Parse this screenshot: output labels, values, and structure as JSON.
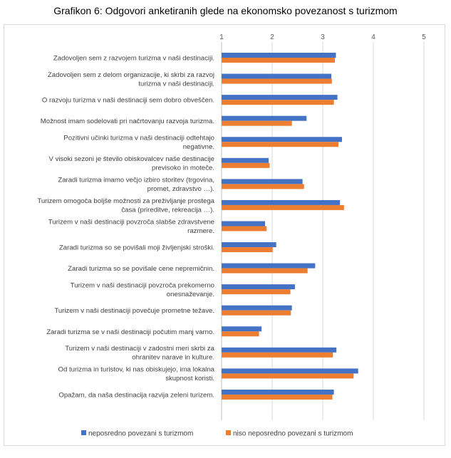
{
  "page": {
    "title": "Grafikon 6: Odgovori anketiranih glede na ekonomsko povezanost s turizmom"
  },
  "colors": {
    "series1": "#4472c4",
    "series2": "#ed7d31",
    "grid": "#d9d9d9",
    "axis": "#bfbfbf"
  },
  "chart_data": {
    "type": "bar",
    "orientation": "horizontal",
    "title": "Grafikon 6: Odgovori anketiranih glede na ekonomsko povezanost s turizmom",
    "xlim": [
      1,
      5
    ],
    "ticks": [
      1,
      2,
      3,
      4,
      5
    ],
    "tick_labels": [
      "1",
      "2",
      "3",
      "4",
      "5"
    ],
    "grid": true,
    "legend_position": "bottom",
    "categories": [
      [
        "Zadovoljen sem z razvojem turizma v naši destinaciji."
      ],
      [
        "Zadovoljen sem z delom organizacije, ki skrbi za razvoj",
        "turizma v naši destinaciji."
      ],
      [
        "O razvoju turizma v naši destinaciji sem dobro obveščen."
      ],
      [
        "Možnost imam sodelovati pri načrtovanju razvoja turizma."
      ],
      [
        "Pozitivni učinki turizma v naši destinaciji odtehtajo",
        "negativne."
      ],
      [
        "V visoki sezoni je število obiskovalcev naše destinacije",
        "previsoko in moteče."
      ],
      [
        "Zaradi turizma imamo večjo izbiro storitev (trgovina,",
        "promet, zdravstvo …)."
      ],
      [
        "Turizem omogoča boljše možnosti za preživljanje prostega",
        "časa (prireditve, rekreacija …)."
      ],
      [
        "Turizem v naši destinaciji povzroča slabše zdravstvene",
        "razmere."
      ],
      [
        "Zaradi turizma so se povišali moji življenjski stroški."
      ],
      [
        "Zaradi turizma so se povišale cene nepremičnin."
      ],
      [
        "Turizem v naši destinaciji povzroča prekomerno",
        "onesnaževanje."
      ],
      [
        "Turizem v naši destinaciji povečuje prometne težave."
      ],
      [
        "Zaradi turizma se v naši destinaciji počutim manj varno."
      ],
      [
        "Turizem v naši destinaciji v zadostni meri skrbi za",
        "ohranitev narave in kulture."
      ],
      [
        "Od turizma in turistov, ki nas obiskujejo, ima lokalna",
        "skupnost koristi."
      ],
      [
        "Opažam, da naša destinacija razvija zeleni turizem."
      ]
    ],
    "series": [
      {
        "name": "neposredno povezani s turizmom",
        "color": "#4472c4",
        "values": [
          3.26,
          3.17,
          3.29,
          2.68,
          3.38,
          1.93,
          2.6,
          3.34,
          1.86,
          2.08,
          2.85,
          2.45,
          2.39,
          1.79,
          3.27,
          3.7,
          3.22
        ]
      },
      {
        "name": "niso neposredno povezani s turizmom",
        "color": "#ed7d31",
        "values": [
          3.24,
          3.18,
          3.22,
          2.39,
          3.31,
          1.95,
          2.63,
          3.42,
          1.89,
          2.01,
          2.7,
          2.36,
          2.37,
          1.74,
          3.2,
          3.61,
          3.19
        ]
      }
    ]
  }
}
